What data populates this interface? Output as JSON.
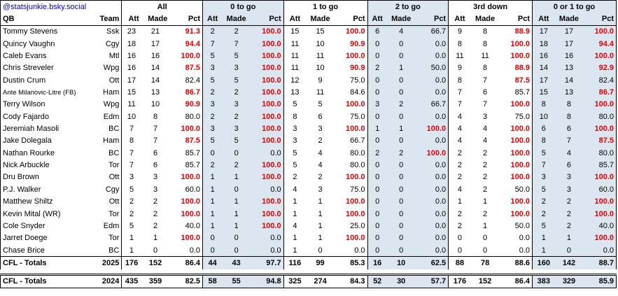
{
  "header": {
    "handle": "@statsjunkie.bsky.social",
    "groups": [
      "All",
      "0 to go",
      "1 to go",
      "2 to go",
      "3rd down",
      "0 or 1 to go"
    ],
    "col_qb": "QB",
    "col_team": "Team",
    "sub": [
      "Att",
      "Made",
      "Pct"
    ]
  },
  "rows": [
    {
      "qb": "Tommy Stevens",
      "team": "Ssk",
      "v": [
        [
          "23",
          "21",
          "91.3"
        ],
        [
          "2",
          "2",
          "100.0"
        ],
        [
          "15",
          "15",
          "100.0"
        ],
        [
          "6",
          "4",
          "66.7"
        ],
        [
          "9",
          "8",
          "88.9"
        ],
        [
          "17",
          "17",
          "100.0"
        ]
      ]
    },
    {
      "qb": "Quincy Vaughn",
      "team": "Cgy",
      "v": [
        [
          "18",
          "17",
          "94.4"
        ],
        [
          "7",
          "7",
          "100.0"
        ],
        [
          "11",
          "10",
          "90.9"
        ],
        [
          "0",
          "0",
          "0.0"
        ],
        [
          "8",
          "8",
          "100.0"
        ],
        [
          "18",
          "17",
          "94.4"
        ]
      ]
    },
    {
      "qb": "Caleb Evans",
      "team": "Mtl",
      "v": [
        [
          "16",
          "16",
          "100.0"
        ],
        [
          "5",
          "5",
          "100.0"
        ],
        [
          "11",
          "11",
          "100.0"
        ],
        [
          "0",
          "0",
          "0.0"
        ],
        [
          "11",
          "11",
          "100.0"
        ],
        [
          "16",
          "16",
          "100.0"
        ]
      ]
    },
    {
      "qb": "Chris Streveler",
      "team": "Wpg",
      "v": [
        [
          "16",
          "14",
          "87.5"
        ],
        [
          "3",
          "3",
          "100.0"
        ],
        [
          "11",
          "10",
          "90.9"
        ],
        [
          "2",
          "1",
          "50.0"
        ],
        [
          "9",
          "8",
          "88.9"
        ],
        [
          "14",
          "13",
          "92.9"
        ]
      ]
    },
    {
      "qb": "Dustin Crum",
      "team": "Ott",
      "v": [
        [
          "17",
          "14",
          "82.4"
        ],
        [
          "5",
          "5",
          "100.0"
        ],
        [
          "12",
          "9",
          "75.0"
        ],
        [
          "0",
          "0",
          "0.0"
        ],
        [
          "8",
          "7",
          "87.5"
        ],
        [
          "17",
          "14",
          "82.4"
        ]
      ]
    },
    {
      "qb": "Ante Milanovic-Litre (FB)",
      "team": "Ham",
      "small": true,
      "v": [
        [
          "15",
          "13",
          "86.7"
        ],
        [
          "2",
          "2",
          "100.0"
        ],
        [
          "13",
          "11",
          "84.6"
        ],
        [
          "0",
          "0",
          "0.0"
        ],
        [
          "7",
          "6",
          "85.7"
        ],
        [
          "15",
          "13",
          "86.7"
        ]
      ]
    },
    {
      "qb": "Terry Wilson",
      "team": "Wpg",
      "v": [
        [
          "11",
          "10",
          "90.9"
        ],
        [
          "3",
          "3",
          "100.0"
        ],
        [
          "5",
          "5",
          "100.0"
        ],
        [
          "3",
          "2",
          "66.7"
        ],
        [
          "7",
          "7",
          "100.0"
        ],
        [
          "8",
          "8",
          "100.0"
        ]
      ]
    },
    {
      "qb": "Cody Fajardo",
      "team": "Edm",
      "v": [
        [
          "10",
          "8",
          "80.0"
        ],
        [
          "2",
          "2",
          "100.0"
        ],
        [
          "8",
          "6",
          "75.0"
        ],
        [
          "0",
          "0",
          "0.0"
        ],
        [
          "4",
          "3",
          "75.0"
        ],
        [
          "10",
          "8",
          "80.0"
        ]
      ]
    },
    {
      "qb": "Jeremiah Masoli",
      "team": "BC",
      "v": [
        [
          "7",
          "7",
          "100.0"
        ],
        [
          "3",
          "3",
          "100.0"
        ],
        [
          "3",
          "3",
          "100.0"
        ],
        [
          "1",
          "1",
          "100.0"
        ],
        [
          "4",
          "4",
          "100.0"
        ],
        [
          "6",
          "6",
          "100.0"
        ]
      ]
    },
    {
      "qb": "Jake Dolegala",
      "team": "Ham",
      "v": [
        [
          "8",
          "7",
          "87.5"
        ],
        [
          "5",
          "5",
          "100.0"
        ],
        [
          "3",
          "2",
          "66.7"
        ],
        [
          "0",
          "0",
          "0.0"
        ],
        [
          "4",
          "4",
          "100.0"
        ],
        [
          "8",
          "7",
          "87.5"
        ]
      ]
    },
    {
      "qb": "Nathan Rourke",
      "team": "BC",
      "v": [
        [
          "7",
          "6",
          "85.7"
        ],
        [
          "0",
          "0",
          "0.0"
        ],
        [
          "5",
          "4",
          "80.0"
        ],
        [
          "2",
          "2",
          "100.0"
        ],
        [
          "2",
          "2",
          "100.0"
        ],
        [
          "5",
          "4",
          "80.0"
        ]
      ]
    },
    {
      "qb": "Nick Arbuckle",
      "team": "Tor",
      "v": [
        [
          "7",
          "6",
          "85.7"
        ],
        [
          "2",
          "2",
          "100.0"
        ],
        [
          "5",
          "4",
          "80.0"
        ],
        [
          "0",
          "0",
          "0.0"
        ],
        [
          "2",
          "2",
          "100.0"
        ],
        [
          "7",
          "6",
          "85.7"
        ]
      ]
    },
    {
      "qb": "Dru Brown",
      "team": "Ott",
      "v": [
        [
          "3",
          "3",
          "100.0"
        ],
        [
          "1",
          "1",
          "100.0"
        ],
        [
          "2",
          "2",
          "100.0"
        ],
        [
          "0",
          "0",
          "0.0"
        ],
        [
          "2",
          "2",
          "100.0"
        ],
        [
          "3",
          "3",
          "100.0"
        ]
      ]
    },
    {
      "qb": "P.J. Walker",
      "team": "Cgy",
      "v": [
        [
          "5",
          "3",
          "60.0"
        ],
        [
          "1",
          "0",
          "0.0"
        ],
        [
          "4",
          "3",
          "75.0"
        ],
        [
          "0",
          "0",
          "0.0"
        ],
        [
          "4",
          "2",
          "50.0"
        ],
        [
          "5",
          "3",
          "60.0"
        ]
      ]
    },
    {
      "qb": "Matthew Shiltz",
      "team": "Ott",
      "v": [
        [
          "2",
          "2",
          "100.0"
        ],
        [
          "1",
          "1",
          "100.0"
        ],
        [
          "1",
          "1",
          "100.0"
        ],
        [
          "0",
          "0",
          "0.0"
        ],
        [
          "1",
          "1",
          "100.0"
        ],
        [
          "2",
          "2",
          "100.0"
        ]
      ]
    },
    {
      "qb": "Kevin Mital (WR)",
      "team": "Tor",
      "v": [
        [
          "2",
          "2",
          "100.0"
        ],
        [
          "1",
          "1",
          "100.0"
        ],
        [
          "1",
          "1",
          "100.0"
        ],
        [
          "0",
          "0",
          "0.0"
        ],
        [
          "2",
          "2",
          "100.0"
        ],
        [
          "2",
          "2",
          "100.0"
        ]
      ]
    },
    {
      "qb": "Cole Snyder",
      "team": "Edm",
      "v": [
        [
          "5",
          "2",
          "40.0"
        ],
        [
          "1",
          "1",
          "100.0"
        ],
        [
          "4",
          "1",
          "25.0"
        ],
        [
          "0",
          "0",
          "0.0"
        ],
        [
          "2",
          "1",
          "50.0"
        ],
        [
          "5",
          "2",
          "40.0"
        ]
      ]
    },
    {
      "qb": "Jarret Doege",
      "team": "Tor",
      "v": [
        [
          "1",
          "1",
          "100.0"
        ],
        [
          "0",
          "0",
          "0.0"
        ],
        [
          "1",
          "1",
          "100.0"
        ],
        [
          "0",
          "0",
          "0.0"
        ],
        [
          "0",
          "0",
          "0.0"
        ],
        [
          "1",
          "1",
          "100.0"
        ]
      ]
    },
    {
      "qb": "Chase Brice",
      "team": "BC",
      "v": [
        [
          "1",
          "0",
          "0.0"
        ],
        [
          "0",
          "0",
          "0.0"
        ],
        [
          "1",
          "0",
          "0.0"
        ],
        [
          "0",
          "0",
          "0.0"
        ],
        [
          "0",
          "0",
          "0.0"
        ],
        [
          "1",
          "0",
          "0.0"
        ]
      ]
    }
  ],
  "totals": [
    {
      "label": "CFL - Totals",
      "year": "2025",
      "v": [
        [
          "176",
          "152",
          "86.4"
        ],
        [
          "44",
          "43",
          "97.7"
        ],
        [
          "116",
          "99",
          "85.3"
        ],
        [
          "16",
          "10",
          "62.5"
        ],
        [
          "88",
          "78",
          "88.6"
        ],
        [
          "160",
          "142",
          "88.7"
        ]
      ]
    },
    {
      "label": "CFL - Totals",
      "year": "2024",
      "v": [
        [
          "435",
          "359",
          "82.5"
        ],
        [
          "58",
          "55",
          "94.8"
        ],
        [
          "325",
          "274",
          "84.3"
        ],
        [
          "52",
          "30",
          "57.7"
        ],
        [
          "176",
          "152",
          "86.4"
        ],
        [
          "383",
          "329",
          "85.9"
        ]
      ]
    }
  ],
  "colors": {
    "highlight_red": "#e00000",
    "shaded_group": "#dce6f1",
    "handle_blue": "#0000cc"
  }
}
